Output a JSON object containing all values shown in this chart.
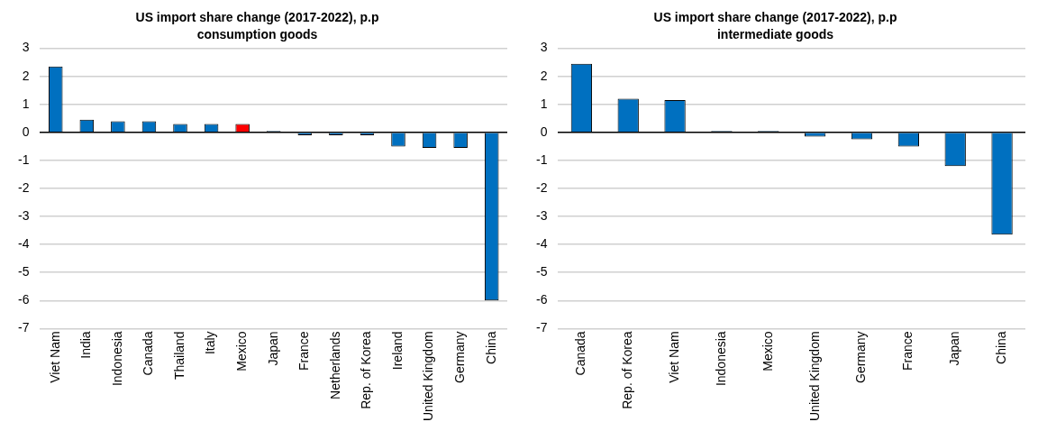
{
  "chart_data": [
    {
      "type": "bar",
      "title": "US import share change (2017-2022), p.p",
      "subtitle": "consumption goods",
      "categories": [
        "Viet Nam",
        "India",
        "Indonesia",
        "Canada",
        "Thailand",
        "Italy",
        "Mexico",
        "Japan",
        "France",
        "Netherlands",
        "Rep. of Korea",
        "Ireland",
        "United Kingdom",
        "Germany",
        "China"
      ],
      "values": [
        2.35,
        0.45,
        0.4,
        0.4,
        0.3,
        0.3,
        0.3,
        0.05,
        -0.1,
        -0.1,
        -0.1,
        -0.5,
        -0.55,
        -0.55,
        -6.0
      ],
      "colors": [
        "#0070c0",
        "#0070c0",
        "#0070c0",
        "#0070c0",
        "#0070c0",
        "#0070c0",
        "#ff0000",
        "#0070c0",
        "#0070c0",
        "#0070c0",
        "#0070c0",
        "#0070c0",
        "#0070c0",
        "#0070c0",
        "#0070c0"
      ],
      "ylim": [
        -7,
        3
      ],
      "yticks": [
        -7,
        -6,
        -5,
        -4,
        -3,
        -2,
        -1,
        0,
        1,
        2,
        3
      ],
      "grid": "y",
      "legend": false
    },
    {
      "type": "bar",
      "title": "US import share change (2017-2022), p.p",
      "subtitle": "intermediate goods",
      "categories": [
        "Canada",
        "Rep. of Korea",
        "Viet Nam",
        "Indonesia",
        "Mexico",
        "United Kingdom",
        "Germany",
        "France",
        "Japan",
        "China"
      ],
      "values": [
        2.45,
        1.2,
        1.15,
        0.05,
        0.05,
        -0.15,
        -0.25,
        -0.5,
        -1.2,
        -3.65
      ],
      "colors": [
        "#0070c0",
        "#0070c0",
        "#0070c0",
        "#0070c0",
        "#0070c0",
        "#0070c0",
        "#0070c0",
        "#0070c0",
        "#0070c0",
        "#0070c0"
      ],
      "ylim": [
        -7,
        3
      ],
      "yticks": [
        -7,
        -6,
        -5,
        -4,
        -3,
        -2,
        -1,
        0,
        1,
        2,
        3
      ],
      "grid": "y",
      "legend": false
    }
  ]
}
